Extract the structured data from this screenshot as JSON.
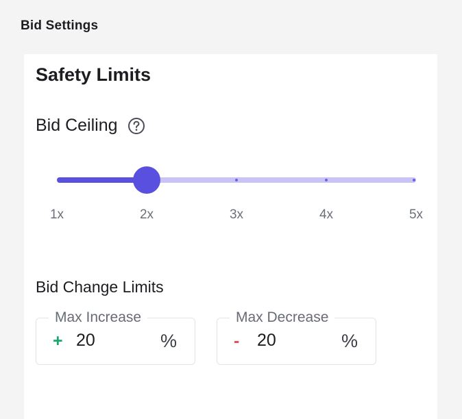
{
  "page": {
    "title": "Bid Settings"
  },
  "safety": {
    "title": "Safety Limits",
    "bid_ceiling": {
      "label": "Bid Ceiling",
      "help_icon": "question-circle-icon",
      "value": 2,
      "min": 1,
      "max": 5,
      "ticks": [
        "1x",
        "2x",
        "3x",
        "4x",
        "5x"
      ]
    },
    "bid_change": {
      "title": "Bid Change Limits",
      "max_increase": {
        "label": "Max Increase",
        "sign": "+",
        "value": "20",
        "unit": "%"
      },
      "max_decrease": {
        "label": "Max Decrease",
        "sign": "-",
        "value": "20",
        "unit": "%"
      }
    }
  },
  "colors": {
    "accent": "#5a50df",
    "track": "#c9c3f6",
    "increase": "#18a86b",
    "decrease": "#e2535a"
  }
}
